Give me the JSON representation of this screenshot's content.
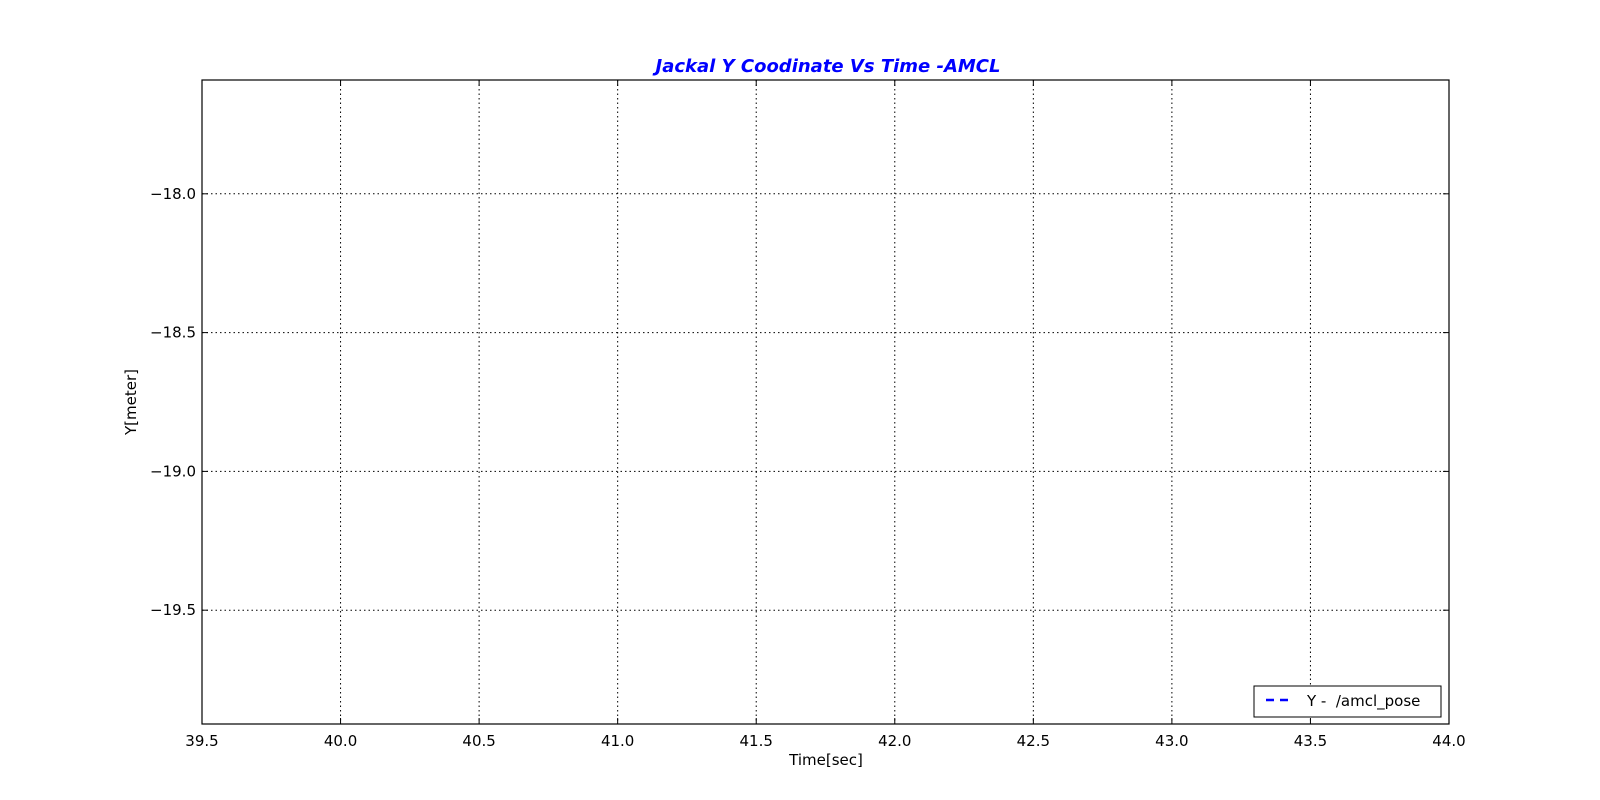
{
  "chart_data": {
    "type": "line",
    "title": "Jackal Y Coodinate Vs Time -AMCL",
    "xlabel": "Time[sec]",
    "ylabel": "Y[meter]",
    "xlim": [
      39.5,
      44.0
    ],
    "ylim": [
      -19.91,
      -17.59
    ],
    "xticks": [
      39.5,
      40.0,
      40.5,
      41.0,
      41.5,
      42.0,
      42.5,
      43.0,
      43.5,
      44.0
    ],
    "xtick_labels": [
      "39.5",
      "40.0",
      "40.5",
      "41.0",
      "41.5",
      "42.0",
      "42.5",
      "43.0",
      "43.5",
      "44.0"
    ],
    "yticks": [
      -18.0,
      -18.5,
      -19.0,
      -19.5
    ],
    "ytick_labels": [
      "−18.0",
      "−18.5",
      "−19.0",
      "−19.5"
    ],
    "grid": true,
    "legend_position": "lower-right",
    "series": [
      {
        "name": "Y -  /amcl_pose",
        "style": "dashed",
        "color": "#0000ff",
        "x": [],
        "y": []
      }
    ]
  },
  "colors": {
    "title": "#0000ff",
    "axis": "#000000",
    "grid": "#000000",
    "background": "#ffffff"
  }
}
